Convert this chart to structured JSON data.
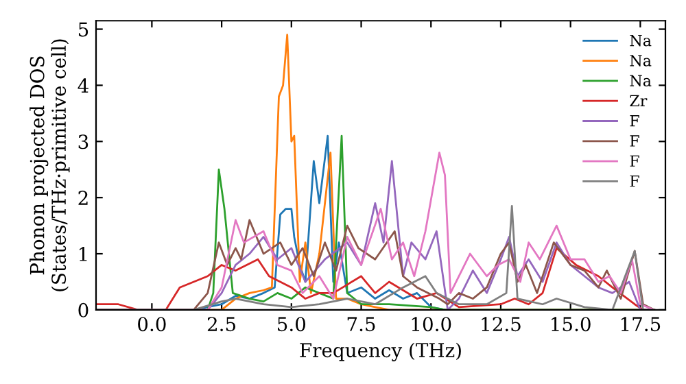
{
  "chart_data": {
    "type": "line",
    "xlabel": "Frequency (THz)",
    "ylabel": "Phonon projected DOS\n(States/THz·primitive cell)",
    "xlim": [
      -2.0,
      18.4
    ],
    "ylim": [
      0,
      5.15
    ],
    "xticks": [
      {
        "value": 0,
        "label": "0.0"
      },
      {
        "value": 2.5,
        "label": "2.5"
      },
      {
        "value": 5,
        "label": "5.0"
      },
      {
        "value": 7.5,
        "label": "7.5"
      },
      {
        "value": 10,
        "label": "10.0"
      },
      {
        "value": 12.5,
        "label": "12.5"
      },
      {
        "value": 15,
        "label": "15.0"
      },
      {
        "value": 17.5,
        "label": "17.5"
      }
    ],
    "yticks": [
      0,
      1,
      2,
      3,
      4,
      5
    ],
    "grid": false,
    "legend": "top right",
    "marker": "none",
    "line_style": "solid",
    "series": [
      {
        "name": "Na",
        "color": "#1f77b4",
        "x": [
          -2,
          1.5,
          2.5,
          3,
          3.5,
          4,
          4.4,
          4.6,
          4.8,
          5.0,
          5.1,
          5.3,
          5.5,
          5.8,
          6.0,
          6.3,
          6.5,
          6.7,
          7.0,
          7.5,
          8,
          8.5,
          9,
          9.5,
          10,
          10.5,
          18
        ],
        "values": [
          0,
          0,
          0.1,
          0.25,
          0.2,
          0.3,
          0.4,
          1.7,
          1.8,
          1.8,
          1.3,
          0.8,
          0.5,
          2.65,
          1.9,
          3.1,
          0.5,
          1.2,
          0.3,
          0.4,
          0.2,
          0.35,
          0.2,
          0.3,
          0.05,
          0,
          0
        ]
      },
      {
        "name": "Na",
        "color": "#ff7f0e",
        "x": [
          -2,
          2.5,
          3,
          3.5,
          4,
          4.3,
          4.55,
          4.7,
          4.85,
          5.0,
          5.1,
          5.3,
          5.5,
          5.7,
          6.0,
          6.4,
          6.6,
          7,
          7.5,
          8,
          8.5,
          18
        ],
        "values": [
          0,
          0,
          0.2,
          0.3,
          0.35,
          0.4,
          3.8,
          4.0,
          4.9,
          3.0,
          3.1,
          0.5,
          1.2,
          0.3,
          1.0,
          2.8,
          0.2,
          0.2,
          0.1,
          0.05,
          0,
          0
        ]
      },
      {
        "name": "Na",
        "color": "#2ca02c",
        "x": [
          -2,
          2,
          2.2,
          2.4,
          2.6,
          2.9,
          3.5,
          4,
          4.5,
          5,
          5.5,
          6,
          6.5,
          6.8,
          7.0,
          7.5,
          8.5,
          10,
          10.5,
          18
        ],
        "values": [
          0,
          0,
          0.3,
          2.5,
          1.8,
          0.3,
          0.2,
          0.15,
          0.3,
          0.2,
          0.4,
          0.3,
          0.2,
          3.1,
          0.3,
          0.1,
          0.1,
          0.05,
          0,
          0
        ]
      },
      {
        "name": "Zr",
        "color": "#d62728",
        "x": [
          -2,
          -1.2,
          -0.5,
          0.5,
          1,
          1.5,
          2,
          2.5,
          3,
          3.8,
          4.2,
          5,
          5.5,
          6,
          6.5,
          7.5,
          8,
          8.5,
          9.5,
          10.2,
          11,
          12.5,
          13,
          13.5,
          14,
          14.5,
          15.2,
          16,
          16.5,
          17.3,
          17.6,
          18
        ],
        "values": [
          0.1,
          0.1,
          0,
          0,
          0.4,
          0.5,
          0.6,
          0.8,
          0.7,
          0.9,
          0.6,
          0.4,
          0.2,
          0.3,
          0.3,
          0.6,
          0.3,
          0.5,
          0.2,
          0.3,
          0.05,
          0.1,
          0.2,
          0.1,
          0.3,
          1.1,
          0.8,
          0.6,
          0.4,
          0.1,
          0,
          0
        ]
      },
      {
        "name": "F",
        "color": "#9467bd",
        "x": [
          -2,
          2,
          2.5,
          3,
          3.5,
          4,
          4.5,
          5,
          5.5,
          6.2,
          7,
          7.5,
          8,
          8.3,
          8.6,
          9,
          9.3,
          9.8,
          10.2,
          10.6,
          11,
          11.5,
          12,
          12.5,
          12.8,
          13.1,
          13.5,
          14,
          14.5,
          15,
          15.5,
          16,
          16.5,
          17.1,
          17.5,
          18
        ],
        "values": [
          0,
          0,
          0.3,
          0.8,
          1.0,
          1.3,
          0.9,
          1.1,
          0.5,
          0.9,
          1.2,
          0.8,
          1.9,
          1.2,
          2.65,
          0.6,
          1.2,
          0.9,
          1.4,
          0,
          0.2,
          0.7,
          0.3,
          0.9,
          1.3,
          0.6,
          0.9,
          0.5,
          1.2,
          0.8,
          0.6,
          0.4,
          0.3,
          0.5,
          0,
          0
        ]
      },
      {
        "name": "F",
        "color": "#8c564b",
        "x": [
          -2,
          1.5,
          2,
          2.4,
          2.7,
          3,
          3.2,
          3.5,
          4,
          4.6,
          5.0,
          5.4,
          5.8,
          6.2,
          6.6,
          7,
          7.4,
          8,
          8.7,
          9,
          9.5,
          10.3,
          10.6,
          11,
          11.5,
          12,
          12.5,
          12.8,
          13.1,
          13.4,
          13.8,
          14.4,
          15,
          15.5,
          16,
          16.3,
          16.8,
          17.3,
          17.6,
          18
        ],
        "values": [
          0,
          0,
          0.3,
          1.2,
          0.8,
          1.1,
          0.9,
          1.6,
          1.0,
          1.2,
          0.8,
          1.1,
          0.6,
          1.2,
          0.7,
          1.5,
          1.1,
          0.9,
          1.4,
          0.6,
          0.4,
          0.2,
          0.1,
          0.3,
          0.2,
          0.4,
          1.0,
          1.2,
          0.5,
          0.8,
          0.3,
          1.2,
          0.8,
          0.7,
          0.4,
          0.7,
          0.2,
          1.05,
          0.1,
          0
        ]
      },
      {
        "name": "F",
        "color": "#e377c2",
        "x": [
          -2,
          2,
          2.5,
          3,
          3.3,
          4,
          4.5,
          5,
          5.4,
          6,
          6.5,
          7,
          7.5,
          8.2,
          8.6,
          9,
          9.4,
          9.8,
          10.3,
          10.5,
          10.7,
          11,
          11.4,
          12,
          12.4,
          12.8,
          13.2,
          13.5,
          13.9,
          14.5,
          15,
          15.5,
          16,
          16.4,
          16.8,
          17.2,
          17.5,
          18
        ],
        "values": [
          0,
          0,
          0.4,
          1.6,
          1.2,
          1.4,
          0.8,
          0.7,
          0.3,
          0.6,
          0.2,
          1.3,
          0.8,
          1.8,
          0.9,
          1.2,
          0.6,
          1.4,
          2.8,
          2.4,
          0.3,
          0.6,
          1.0,
          0.6,
          0.8,
          0.9,
          0.5,
          1.2,
          0.9,
          1.5,
          0.9,
          0.9,
          0.5,
          0.6,
          0.3,
          0.9,
          0.1,
          0
        ]
      },
      {
        "name": "F",
        "color": "#7f7f7f",
        "x": [
          -2,
          1.5,
          2.5,
          3,
          4,
          5,
          6,
          7,
          8,
          9,
          9.8,
          10.2,
          11,
          12,
          12.7,
          12.9,
          13.1,
          14,
          14.5,
          15.5,
          16.5,
          17.3,
          17.6,
          18
        ],
        "values": [
          0,
          0,
          0.15,
          0.2,
          0.1,
          0.05,
          0.1,
          0.2,
          0.1,
          0.4,
          0.6,
          0.3,
          0.1,
          0.1,
          0.3,
          1.85,
          0.2,
          0.1,
          0.2,
          0.05,
          0,
          1.05,
          0,
          0
        ]
      }
    ]
  }
}
